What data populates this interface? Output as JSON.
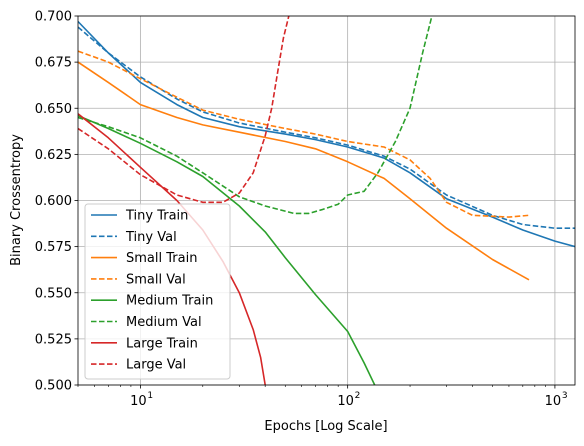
{
  "chart_data": {
    "type": "line",
    "title": "",
    "xlabel": "Epochs [Log Scale]",
    "ylabel": "Binary Crossentropy",
    "xscale": "log",
    "xlim": [
      5,
      1250
    ],
    "ylim": [
      0.5,
      0.7
    ],
    "grid": true,
    "legend_position": "lower-left",
    "x_ticks": [
      {
        "value": 10,
        "label": "10"
      },
      {
        "value": 100,
        "label": "10"
      },
      {
        "value": 1000,
        "label": "10"
      }
    ],
    "x_tick_exponents": [
      "1",
      "2",
      "3"
    ],
    "y_ticks": [
      {
        "value": 0.5,
        "label": "0.500"
      },
      {
        "value": 0.525,
        "label": "0.525"
      },
      {
        "value": 0.55,
        "label": "0.550"
      },
      {
        "value": 0.575,
        "label": "0.575"
      },
      {
        "value": 0.6,
        "label": "0.600"
      },
      {
        "value": 0.625,
        "label": "0.625"
      },
      {
        "value": 0.65,
        "label": "0.650"
      },
      {
        "value": 0.675,
        "label": "0.675"
      },
      {
        "value": 0.7,
        "label": "0.700"
      }
    ],
    "series": [
      {
        "name": "Tiny Train",
        "color": "#1f77b4",
        "dash": "solid",
        "points": [
          [
            5,
            0.697
          ],
          [
            7,
            0.68
          ],
          [
            10,
            0.664
          ],
          [
            15,
            0.652
          ],
          [
            20,
            0.645
          ],
          [
            30,
            0.64
          ],
          [
            50,
            0.636
          ],
          [
            70,
            0.633
          ],
          [
            100,
            0.629
          ],
          [
            150,
            0.623
          ],
          [
            200,
            0.615
          ],
          [
            300,
            0.601
          ],
          [
            500,
            0.591
          ],
          [
            700,
            0.584
          ],
          [
            1000,
            0.578
          ],
          [
            1250,
            0.575
          ]
        ]
      },
      {
        "name": "Tiny Val",
        "color": "#1f77b4",
        "dash": "dashed",
        "points": [
          [
            5,
            0.694
          ],
          [
            7,
            0.68
          ],
          [
            10,
            0.667
          ],
          [
            15,
            0.655
          ],
          [
            20,
            0.648
          ],
          [
            30,
            0.642
          ],
          [
            50,
            0.637
          ],
          [
            70,
            0.634
          ],
          [
            100,
            0.63
          ],
          [
            150,
            0.624
          ],
          [
            200,
            0.617
          ],
          [
            300,
            0.603
          ],
          [
            500,
            0.592
          ],
          [
            700,
            0.587
          ],
          [
            1000,
            0.585
          ],
          [
            1250,
            0.585
          ]
        ]
      },
      {
        "name": "Small Train",
        "color": "#ff7f0e",
        "dash": "solid",
        "points": [
          [
            5,
            0.675
          ],
          [
            7,
            0.664
          ],
          [
            10,
            0.652
          ],
          [
            15,
            0.645
          ],
          [
            20,
            0.641
          ],
          [
            30,
            0.637
          ],
          [
            50,
            0.632
          ],
          [
            70,
            0.628
          ],
          [
            100,
            0.621
          ],
          [
            150,
            0.612
          ],
          [
            200,
            0.601
          ],
          [
            300,
            0.585
          ],
          [
            500,
            0.568
          ],
          [
            750,
            0.557
          ]
        ]
      },
      {
        "name": "Small Val",
        "color": "#ff7f0e",
        "dash": "dashed",
        "points": [
          [
            5,
            0.681
          ],
          [
            7,
            0.675
          ],
          [
            10,
            0.666
          ],
          [
            15,
            0.656
          ],
          [
            20,
            0.649
          ],
          [
            30,
            0.644
          ],
          [
            50,
            0.639
          ],
          [
            70,
            0.636
          ],
          [
            100,
            0.632
          ],
          [
            150,
            0.629
          ],
          [
            200,
            0.622
          ],
          [
            250,
            0.612
          ],
          [
            300,
            0.599
          ],
          [
            400,
            0.592
          ],
          [
            600,
            0.591
          ],
          [
            750,
            0.592
          ]
        ]
      },
      {
        "name": "Medium Train",
        "color": "#2ca02c",
        "dash": "solid",
        "points": [
          [
            5,
            0.646
          ],
          [
            7,
            0.639
          ],
          [
            10,
            0.631
          ],
          [
            15,
            0.621
          ],
          [
            20,
            0.613
          ],
          [
            30,
            0.597
          ],
          [
            40,
            0.583
          ],
          [
            50,
            0.569
          ],
          [
            70,
            0.549
          ],
          [
            100,
            0.529
          ],
          [
            120,
            0.512
          ],
          [
            135,
            0.5
          ]
        ]
      },
      {
        "name": "Medium Val",
        "color": "#2ca02c",
        "dash": "dashed",
        "points": [
          [
            5,
            0.645
          ],
          [
            7,
            0.64
          ],
          [
            10,
            0.634
          ],
          [
            15,
            0.624
          ],
          [
            20,
            0.615
          ],
          [
            30,
            0.602
          ],
          [
            40,
            0.597
          ],
          [
            55,
            0.593
          ],
          [
            65,
            0.593
          ],
          [
            75,
            0.595
          ],
          [
            90,
            0.598
          ],
          [
            100,
            0.603
          ],
          [
            120,
            0.605
          ],
          [
            140,
            0.615
          ],
          [
            170,
            0.632
          ],
          [
            200,
            0.65
          ],
          [
            230,
            0.68
          ],
          [
            255,
            0.7
          ]
        ]
      },
      {
        "name": "Large Train",
        "color": "#d62728",
        "dash": "solid",
        "points": [
          [
            5,
            0.647
          ],
          [
            7,
            0.634
          ],
          [
            10,
            0.618
          ],
          [
            15,
            0.6
          ],
          [
            20,
            0.584
          ],
          [
            25,
            0.567
          ],
          [
            30,
            0.55
          ],
          [
            35,
            0.53
          ],
          [
            38,
            0.515
          ],
          [
            40,
            0.5
          ]
        ]
      },
      {
        "name": "Large Val",
        "color": "#d62728",
        "dash": "dashed",
        "points": [
          [
            5,
            0.639
          ],
          [
            7,
            0.628
          ],
          [
            10,
            0.614
          ],
          [
            15,
            0.603
          ],
          [
            20,
            0.599
          ],
          [
            25,
            0.599
          ],
          [
            30,
            0.604
          ],
          [
            35,
            0.615
          ],
          [
            40,
            0.635
          ],
          [
            43,
            0.65
          ],
          [
            46,
            0.67
          ],
          [
            49,
            0.688
          ],
          [
            52,
            0.7
          ]
        ]
      }
    ]
  }
}
